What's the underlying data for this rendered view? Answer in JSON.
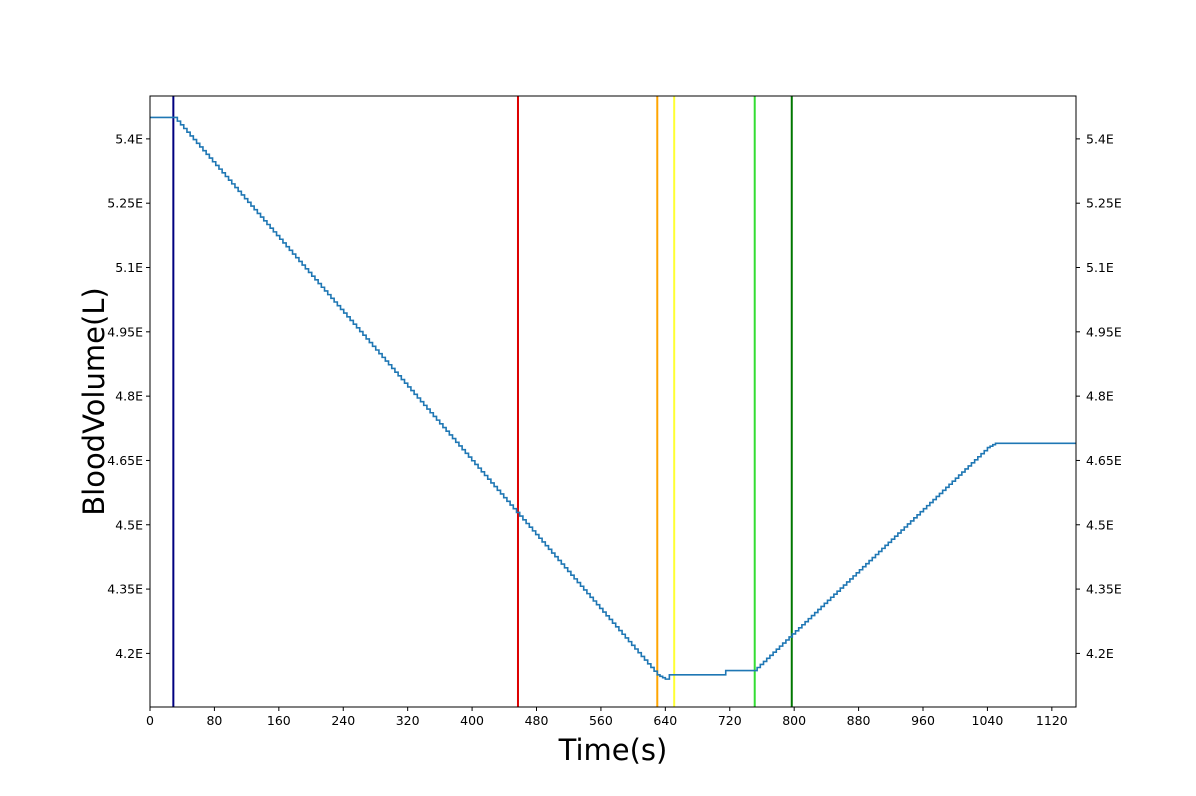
{
  "chart_data": {
    "type": "line",
    "title": "",
    "xlabel": "Time(s)",
    "ylabel": "BloodVolume(L)",
    "xlim": [
      0,
      1150
    ],
    "ylim": [
      4.075,
      5.5
    ],
    "grid": false,
    "x_ticks": [
      0,
      80,
      160,
      240,
      320,
      400,
      480,
      560,
      640,
      720,
      800,
      880,
      960,
      1040,
      1120
    ],
    "x_tick_labels": [
      "0",
      "80",
      "160",
      "240",
      "320",
      "400",
      "480",
      "560",
      "640",
      "720",
      "800",
      "880",
      "960",
      "1040",
      "1120"
    ],
    "y_ticks": [
      4.2,
      4.35,
      4.5,
      4.65,
      4.8,
      4.95,
      5.1,
      5.25,
      5.4
    ],
    "y_tick_labels": [
      "4.2E",
      "4.35E",
      "4.5E",
      "4.65E",
      "4.8E",
      "4.95E",
      "5.1E",
      "5.25E",
      "5.4E"
    ],
    "series": [
      {
        "color": "#1f77b4",
        "step": true,
        "x": [
          0,
          30,
          630,
          640,
          643,
          645,
          712,
          715,
          750,
          1040,
          1050,
          1150
        ],
        "y": [
          5.45,
          5.45,
          4.15,
          4.14,
          4.14,
          4.15,
          4.15,
          4.16,
          4.16,
          4.68,
          4.69,
          4.69
        ]
      }
    ],
    "event_lines": [
      {
        "x": 29,
        "color": "#000080"
      },
      {
        "x": 457,
        "color": "#dd0000"
      },
      {
        "x": 630,
        "color": "#ffa500"
      },
      {
        "x": 651,
        "color": "#ffff33"
      },
      {
        "x": 751,
        "color": "#33dd33"
      },
      {
        "x": 797,
        "color": "#007700"
      }
    ]
  }
}
